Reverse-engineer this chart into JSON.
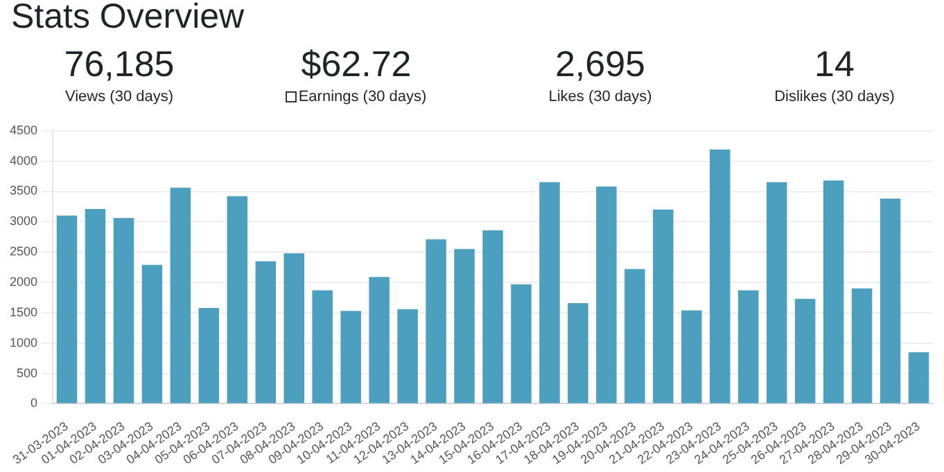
{
  "chart_data": [
    {
      "type": "other",
      "title": "Stats Overview",
      "annotations": [
        "76,185",
        "Views (30 days)",
        "$62.72",
        "Earnings (30 days)",
        "2,695",
        "Likes (30 days)",
        "14",
        "Dislikes (30 days)"
      ]
    },
    {
      "type": "bar",
      "categories": [
        "31-03-2023",
        "01-04-2023",
        "02-04-2023",
        "03-04-2023",
        "04-04-2023",
        "05-04-2023",
        "06-04-2023",
        "07-04-2023",
        "08-04-2023",
        "09-04-2023",
        "10-04-2023",
        "11-04-2023",
        "12-04-2023",
        "13-04-2023",
        "14-04-2023",
        "15-04-2023",
        "16-04-2023",
        "17-04-2023",
        "18-04-2023",
        "19-04-2023",
        "20-04-2023",
        "21-04-2023",
        "22-04-2023",
        "23-04-2023",
        "24-04-2023",
        "25-04-2023",
        "26-04-2023",
        "27-04-2023",
        "28-04-2023",
        "29-04-2023",
        "30-04-2023"
      ],
      "values": [
        3100,
        3210,
        3060,
        2290,
        3560,
        1580,
        3420,
        2350,
        2480,
        1870,
        1530,
        2090,
        1560,
        2710,
        2550,
        2860,
        1970,
        3650,
        1660,
        3580,
        2220,
        3200,
        1540,
        4190,
        1870,
        3650,
        1730,
        3680,
        1900,
        3380,
        850
      ],
      "color": "#4c9fbf",
      "ylim": [
        0,
        4500
      ],
      "yticks": [
        0,
        500,
        1000,
        1500,
        2000,
        2500,
        3000,
        3500,
        4000,
        4500
      ],
      "grid": "y",
      "legend": false
    }
  ]
}
